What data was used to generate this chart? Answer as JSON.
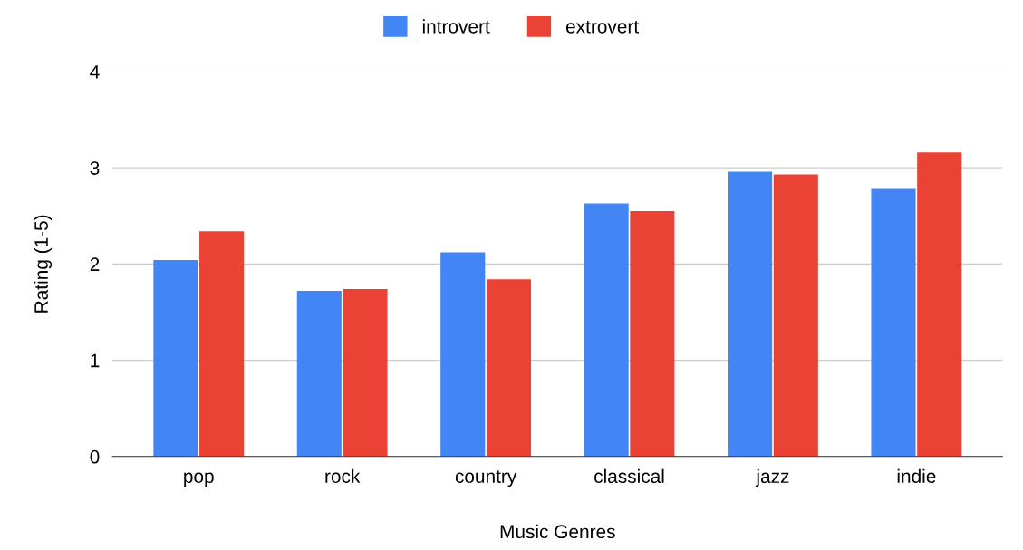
{
  "chart_data": {
    "type": "bar",
    "xlabel": "Music Genres",
    "ylabel": "Rating (1-5)",
    "categories": [
      "pop",
      "rock",
      "country",
      "classical",
      "jazz",
      "indie"
    ],
    "series": [
      {
        "name": "introvert",
        "color": "#4285f4",
        "values": [
          2.04,
          1.72,
          2.12,
          2.63,
          2.96,
          2.78
        ]
      },
      {
        "name": "extrovert",
        "color": "#ea4335",
        "values": [
          2.34,
          1.74,
          1.84,
          2.55,
          2.93,
          3.16
        ]
      }
    ],
    "ylim": [
      0,
      4
    ],
    "yticks": [
      0,
      1,
      2,
      3,
      4
    ],
    "grid": "y",
    "legend": "top"
  }
}
